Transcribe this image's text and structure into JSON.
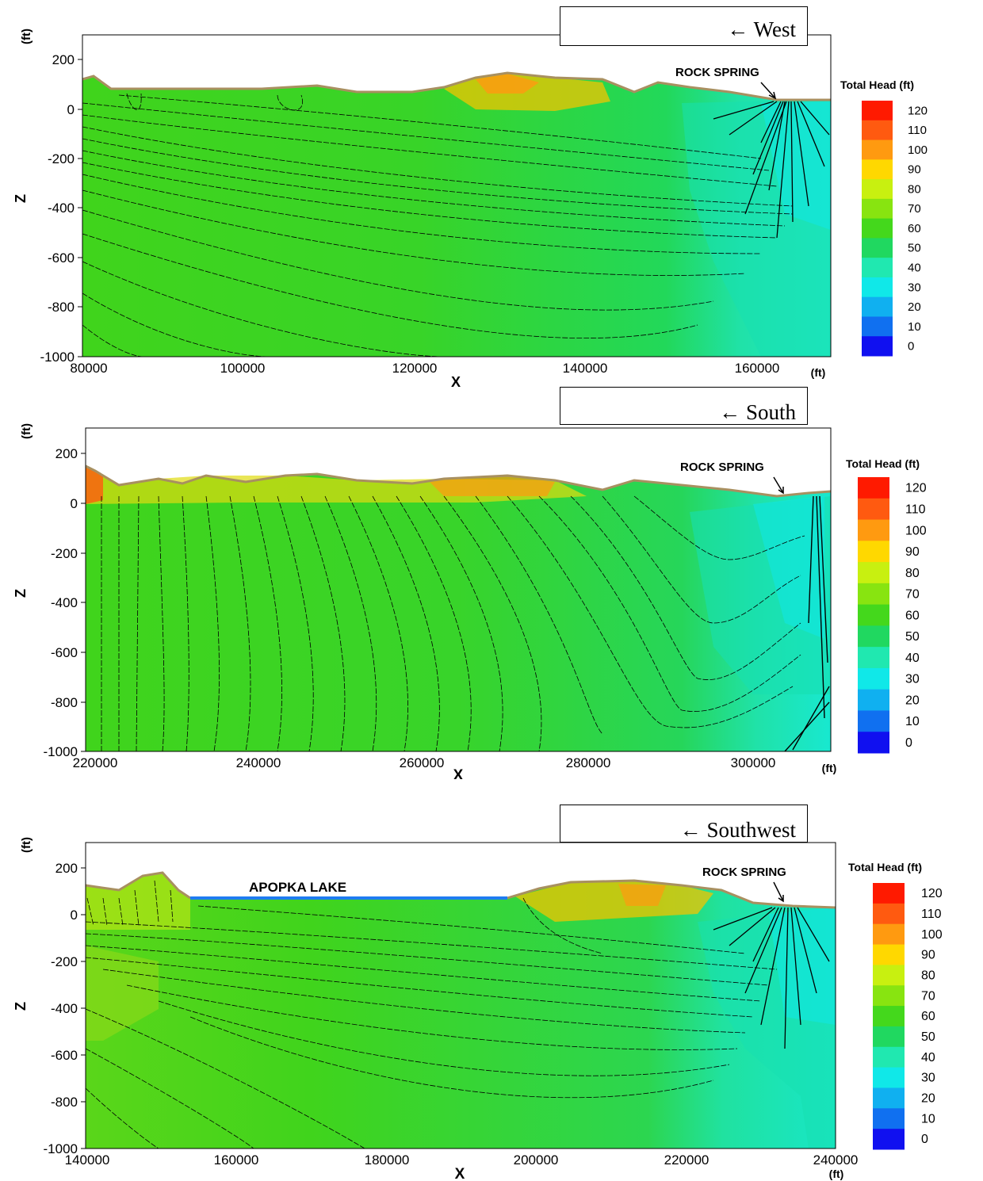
{
  "legend": {
    "title": "Total Head (ft)",
    "levels": [
      "120",
      "110",
      "100",
      "90",
      "80",
      "70",
      "60",
      "50",
      "40",
      "30",
      "20",
      "10",
      "0"
    ],
    "colors": [
      "#ff1a00",
      "#ff5a10",
      "#ff9a10",
      "#ffd800",
      "#c8f010",
      "#88e410",
      "#44d81c",
      "#20d860",
      "#20e8b0",
      "#10e8e8",
      "#10b0f0",
      "#1070f0",
      "#1010f0"
    ]
  },
  "panels": [
    {
      "direction": "← West",
      "site_label": "ROCK SPRING",
      "lake_label": "",
      "y_unit": "(ft)",
      "y_label": "Z",
      "x_label": "X",
      "x_unit": "(ft)",
      "y_ticks": [
        "200",
        "0",
        "-200",
        "-400",
        "-600",
        "-800",
        "-1000"
      ],
      "x_ticks": [
        "80000",
        "100000",
        "120000",
        "140000",
        "160000"
      ],
      "xlim": [
        80000,
        168000
      ],
      "ylim": [
        -1000,
        280
      ]
    },
    {
      "direction": "← South",
      "site_label": "ROCK SPRING",
      "lake_label": "",
      "y_unit": "(ft)",
      "y_label": "Z",
      "x_label": "X",
      "x_unit": "(ft)",
      "y_ticks": [
        "200",
        "0",
        "-200",
        "-400",
        "-600",
        "-800",
        "-1000"
      ],
      "x_ticks": [
        "220000",
        "240000",
        "260000",
        "280000",
        "300000"
      ],
      "xlim": [
        220000,
        310000
      ],
      "ylim": [
        -1000,
        280
      ]
    },
    {
      "direction": "← Southwest",
      "site_label": "ROCK SPRING",
      "lake_label": "APOPKA LAKE",
      "y_unit": "(ft)",
      "y_label": "Z",
      "x_label": "X",
      "x_unit": "(ft)",
      "y_ticks": [
        "200",
        "0",
        "-200",
        "-400",
        "-600",
        "-800",
        "-1000"
      ],
      "x_ticks": [
        "140000",
        "160000",
        "180000",
        "200000",
        "220000",
        "240000"
      ],
      "xlim": [
        140000,
        240000
      ],
      "ylim": [
        -1000,
        280
      ]
    }
  ]
}
